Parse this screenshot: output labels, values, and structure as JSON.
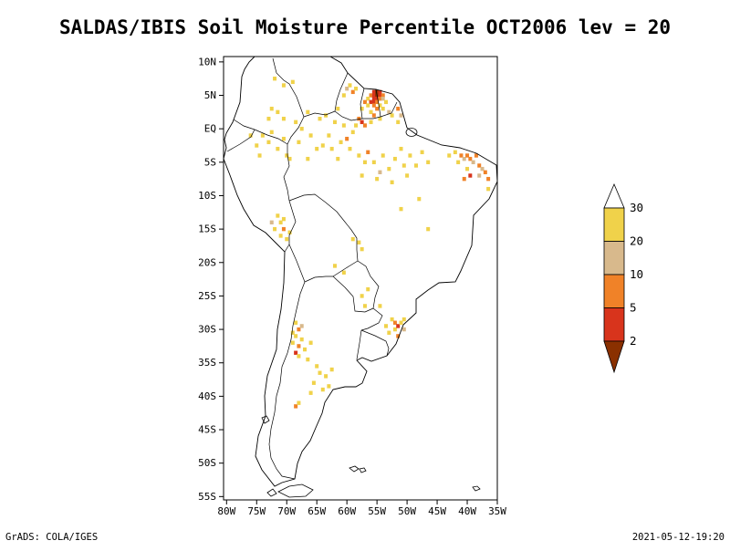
{
  "title": "SALDAS/IBIS Soil Moisture Percentile OCT2006 lev = 20",
  "footer": {
    "left": "GrADS: COLA/IGES",
    "right": "2021-05-12-19:20"
  },
  "chart_data": {
    "type": "heatmap",
    "subtype": "geographic-shaded-grid-map",
    "title": "SALDAS/IBIS Soil Moisture Percentile OCT2006 lev = 20",
    "region": "South America",
    "lon_range": [
      -80.5,
      -35
    ],
    "lat_range": [
      -55.5,
      10.8
    ],
    "grid": false,
    "x_ticks": {
      "values": [
        -80,
        -75,
        -70,
        -65,
        -60,
        -55,
        -50,
        -45,
        -40,
        -35
      ],
      "labels": [
        "80W",
        "75W",
        "70W",
        "65W",
        "60W",
        "55W",
        "50W",
        "45W",
        "40W",
        "35W"
      ]
    },
    "y_ticks": {
      "values": [
        10,
        5,
        0,
        -5,
        -10,
        -15,
        -20,
        -25,
        -30,
        -35,
        -40,
        -45,
        -50,
        -55
      ],
      "labels": [
        "10N",
        "5N",
        "EQ",
        "5S",
        "10S",
        "15S",
        "20S",
        "25S",
        "30S",
        "35S",
        "40S",
        "45S",
        "50S",
        "55S"
      ]
    },
    "legend": {
      "position": "right",
      "orientation": "vertical",
      "edge_labels": [
        "30",
        "20",
        "10",
        "5",
        "2"
      ],
      "segments": [
        {
          "range": ">30",
          "color": "#ffffff"
        },
        {
          "range": "20-30",
          "color": "#f0d24a"
        },
        {
          "range": "10-20",
          "color": "#d8b98c"
        },
        {
          "range": "5-10",
          "color": "#f08228"
        },
        {
          "range": "2-5",
          "color": "#d8341c"
        },
        {
          "range": "<2",
          "color": "#8a3000"
        }
      ]
    },
    "cells": [
      [
        -55.5,
        5.5,
        4
      ],
      [
        -55,
        5.5,
        5
      ],
      [
        -54.5,
        5.5,
        4
      ],
      [
        -56,
        5,
        3
      ],
      [
        -55.5,
        5,
        4
      ],
      [
        -55,
        5,
        5
      ],
      [
        -54.5,
        5,
        4
      ],
      [
        -54,
        5,
        3
      ],
      [
        -56.5,
        4.5,
        1
      ],
      [
        -55.5,
        4.5,
        4
      ],
      [
        -55,
        4.5,
        4
      ],
      [
        -54.5,
        4.5,
        3
      ],
      [
        -54,
        4.5,
        2
      ],
      [
        -57,
        4,
        3
      ],
      [
        -56,
        4,
        4
      ],
      [
        -55.5,
        4,
        4
      ],
      [
        -55,
        4,
        3
      ],
      [
        -53.5,
        4,
        1
      ],
      [
        -56.5,
        3.5,
        1
      ],
      [
        -55.5,
        3.5,
        3
      ],
      [
        -54.5,
        3.5,
        1
      ],
      [
        -57.5,
        3,
        1
      ],
      [
        -55,
        3,
        3
      ],
      [
        -54,
        3,
        1
      ],
      [
        -56,
        2.5,
        1
      ],
      [
        -55.5,
        2,
        3
      ],
      [
        -53,
        2.5,
        2
      ],
      [
        -52.5,
        2,
        1
      ],
      [
        -58,
        1.5,
        3
      ],
      [
        -57.5,
        1,
        4
      ],
      [
        -57,
        0.5,
        3
      ],
      [
        -58.5,
        0.5,
        1
      ],
      [
        -56,
        1,
        1
      ],
      [
        -54.5,
        1.5,
        1
      ],
      [
        -51.5,
        3,
        3
      ],
      [
        -51,
        2,
        2
      ],
      [
        -51.5,
        1,
        1
      ],
      [
        -59.5,
        6.5,
        1
      ],
      [
        -60,
        6,
        2
      ],
      [
        -59,
        5.5,
        3
      ],
      [
        -60.5,
        5,
        1
      ],
      [
        -58.5,
        6,
        1
      ],
      [
        -72.5,
        3,
        1
      ],
      [
        -71.5,
        2.5,
        1
      ],
      [
        -70.5,
        1.5,
        1
      ],
      [
        -73,
        1.5,
        1
      ],
      [
        -72,
        7.5,
        1
      ],
      [
        -70.5,
        6.5,
        1
      ],
      [
        -69,
        7,
        1
      ],
      [
        -76,
        -1,
        1
      ],
      [
        -75,
        -2.5,
        1
      ],
      [
        -74.5,
        -4,
        1
      ],
      [
        -74,
        -1,
        1
      ],
      [
        -73,
        -2,
        1
      ],
      [
        -72.5,
        -0.5,
        1
      ],
      [
        -71.5,
        -3,
        1
      ],
      [
        -70.5,
        -1.5,
        1
      ],
      [
        -70,
        -4,
        1
      ],
      [
        -69.5,
        -4.5,
        1
      ],
      [
        -68,
        -2,
        1
      ],
      [
        -67.5,
        0,
        1
      ],
      [
        -66.5,
        2.5,
        1
      ],
      [
        -66,
        -1,
        1
      ],
      [
        -65,
        -3,
        1
      ],
      [
        -64.5,
        1.5,
        1
      ],
      [
        -64,
        -2.5,
        1
      ],
      [
        -63.5,
        2,
        1
      ],
      [
        -63,
        -1,
        1
      ],
      [
        -62.5,
        -3,
        1
      ],
      [
        -62,
        1,
        1
      ],
      [
        -61.5,
        3,
        1
      ],
      [
        -61.5,
        -4.5,
        1
      ],
      [
        -61,
        -2,
        1
      ],
      [
        -60.5,
        0.5,
        1
      ],
      [
        -60,
        -1.5,
        3
      ],
      [
        -59.5,
        -3,
        1
      ],
      [
        -59,
        -0.5,
        1
      ],
      [
        -68.5,
        1,
        1
      ],
      [
        -66.5,
        -4.5,
        1
      ],
      [
        -58,
        -4,
        1
      ],
      [
        -57,
        -5,
        1
      ],
      [
        -56.5,
        -3.5,
        3
      ],
      [
        -55.5,
        -5,
        1
      ],
      [
        -54.5,
        -6.5,
        2
      ],
      [
        -54,
        -4,
        1
      ],
      [
        -53,
        -6,
        1
      ],
      [
        -52,
        -4.5,
        1
      ],
      [
        -51,
        -3,
        1
      ],
      [
        -50.5,
        -5.5,
        1
      ],
      [
        -49.5,
        -4,
        1
      ],
      [
        -57.5,
        -7,
        1
      ],
      [
        -55,
        -7.5,
        1
      ],
      [
        -52.5,
        -8,
        1
      ],
      [
        -50,
        -7,
        1
      ],
      [
        -48.5,
        -5.5,
        1
      ],
      [
        -47.5,
        -3.5,
        1
      ],
      [
        -46.5,
        -5,
        1
      ],
      [
        -43,
        -4,
        1
      ],
      [
        -42,
        -3.5,
        1
      ],
      [
        -41.5,
        -5,
        1
      ],
      [
        -41,
        -4,
        3
      ],
      [
        -40.5,
        -4.5,
        2
      ],
      [
        -40.5,
        -7.5,
        3
      ],
      [
        -40,
        -4,
        3
      ],
      [
        -40,
        -6,
        1
      ],
      [
        -39.5,
        -4.5,
        3
      ],
      [
        -39.5,
        -7,
        4
      ],
      [
        -39,
        -5,
        2
      ],
      [
        -38.5,
        -4,
        3
      ],
      [
        -38,
        -5.5,
        3
      ],
      [
        -38,
        -7,
        2
      ],
      [
        -37.5,
        -6,
        2
      ],
      [
        -37,
        -6.5,
        3
      ],
      [
        -36.5,
        -7.5,
        3
      ],
      [
        -36.5,
        -9,
        1
      ],
      [
        -51,
        -12,
        1
      ],
      [
        -48,
        -10.5,
        1
      ],
      [
        -46.5,
        -15,
        1
      ],
      [
        -72.5,
        -14,
        2
      ],
      [
        -72,
        -15,
        1
      ],
      [
        -71.5,
        -13,
        1
      ],
      [
        -71,
        -14,
        1
      ],
      [
        -71,
        -16,
        1
      ],
      [
        -70.5,
        -15,
        3
      ],
      [
        -70.5,
        -13.5,
        1
      ],
      [
        -70,
        -16.5,
        1
      ],
      [
        -69.5,
        -15.5,
        1
      ],
      [
        -59,
        -16.5,
        1
      ],
      [
        -58,
        -17,
        1
      ],
      [
        -57.5,
        -18,
        1
      ],
      [
        -62,
        -20.5,
        1
      ],
      [
        -60.5,
        -21.5,
        1
      ],
      [
        -57.5,
        -25,
        1
      ],
      [
        -56.5,
        -24,
        1
      ],
      [
        -57,
        -26.5,
        1
      ],
      [
        -69,
        -30.5,
        1
      ],
      [
        -69,
        -32,
        1
      ],
      [
        -68.5,
        -29,
        1
      ],
      [
        -68.5,
        -31,
        1
      ],
      [
        -68.5,
        -33.5,
        4
      ],
      [
        -68,
        -30,
        3
      ],
      [
        -68,
        -32.5,
        3
      ],
      [
        -68,
        -34,
        1
      ],
      [
        -67.5,
        -29.5,
        2
      ],
      [
        -67.5,
        -31.5,
        1
      ],
      [
        -67,
        -33,
        1
      ],
      [
        -66.5,
        -34.5,
        1
      ],
      [
        -66,
        -32,
        1
      ],
      [
        -65,
        -35.5,
        1
      ],
      [
        -64.5,
        -36.5,
        1
      ],
      [
        -63.5,
        -37,
        1
      ],
      [
        -65.5,
        -38,
        1
      ],
      [
        -64,
        -39,
        1
      ],
      [
        -66,
        -39.5,
        1
      ],
      [
        -62.5,
        -36,
        1
      ],
      [
        -63,
        -38.5,
        1
      ],
      [
        -53.5,
        -29.5,
        1
      ],
      [
        -53,
        -30.5,
        1
      ],
      [
        -52.5,
        -28.5,
        1
      ],
      [
        -52,
        -29,
        3
      ],
      [
        -52,
        -30,
        1
      ],
      [
        -51.5,
        -29.5,
        4
      ],
      [
        -51.5,
        -31,
        3
      ],
      [
        -51,
        -29,
        1
      ],
      [
        -50.5,
        -30,
        2
      ],
      [
        -50.5,
        -28.5,
        1
      ],
      [
        -54.5,
        -26.5,
        1
      ],
      [
        -68.5,
        -41.5,
        3
      ],
      [
        -68,
        -41,
        1
      ]
    ]
  }
}
